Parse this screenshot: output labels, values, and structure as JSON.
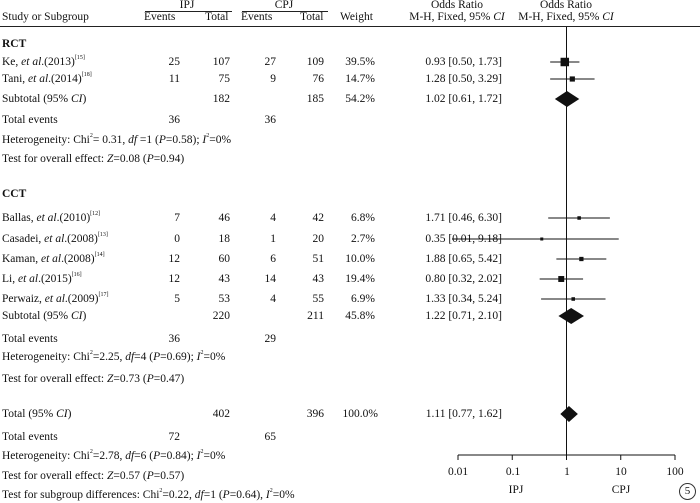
{
  "header": {
    "study": "Study or Subgroup",
    "ipj": "IPJ",
    "cpj": "CPJ",
    "events": "Events",
    "total": "Total",
    "weight": "Weight",
    "or_title": "Odds Ratio",
    "or_sub_prefix": "M-H, Fixed, 95% ",
    "ci": "CI"
  },
  "groups": [
    {
      "label": "RCT",
      "studies": [
        {
          "author": "Ke, ",
          "etal": "et al",
          "year": ".(2013)",
          "ref": "[15]",
          "ipj_e": "25",
          "ipj_t": "107",
          "cpj_e": "27",
          "cpj_t": "109",
          "weight": "39.5%",
          "or": "0.93 [0.50, 1.73]"
        },
        {
          "author": "Tani, ",
          "etal": "et al",
          "year": ".(2014)",
          "ref": "[18]",
          "ipj_e": "11",
          "ipj_t": "75",
          "cpj_e": "9",
          "cpj_t": "76",
          "weight": "14.7%",
          "or": "1.28 [0.50, 3.29]"
        }
      ],
      "subtotal": {
        "label_a": "Subtotal (95% ",
        "label_b": "CI",
        ")": ")",
        "ipj_t": "182",
        "cpj_t": "185",
        "weight": "54.2%",
        "or": "1.02 [0.61, 1.72]"
      },
      "total_events": {
        "label": "Total events",
        "ipj": "36",
        "cpj": "36"
      },
      "heterogeneity": {
        "a": "Heterogeneity: Chi",
        "sq": "2",
        "b": "= 0.31, ",
        "df": "df",
        "c": " =1 (",
        "p": "P",
        "d": "=0.58); ",
        "i": "I",
        "isq": "2",
        "e": "=0%"
      },
      "overall": {
        "a": "Test for overall effect: ",
        "z": "Z",
        "b": "=0.08 (",
        "p": "P",
        "c": "=0.94)"
      }
    },
    {
      "label": "CCT",
      "studies": [
        {
          "author": "Ballas, ",
          "etal": "et al",
          "year": ".(2010)",
          "ref": "[12]",
          "ipj_e": "7",
          "ipj_t": "46",
          "cpj_e": "4",
          "cpj_t": "42",
          "weight": "6.8%",
          "or": "1.71 [0.46, 6.30]"
        },
        {
          "author": "Casadei, ",
          "etal": "et al",
          "year": ".(2008)",
          "ref": "[13]",
          "ipj_e": "0",
          "ipj_t": "18",
          "cpj_e": "1",
          "cpj_t": "20",
          "weight": "2.7%",
          "or": "0.35 [0.01, 9.18]"
        },
        {
          "author": "Kaman, ",
          "etal": "et al",
          "year": ".(2008)",
          "ref": "[14]",
          "ipj_e": "12",
          "ipj_t": "60",
          "cpj_e": "6",
          "cpj_t": "51",
          "weight": "10.0%",
          "or": "1.88 [0.65, 5.42]"
        },
        {
          "author": "Li, ",
          "etal": "et al",
          "year": ".(2015)",
          "ref": "[16]",
          "ipj_e": "12",
          "ipj_t": "43",
          "cpj_e": "14",
          "cpj_t": "43",
          "weight": "19.4%",
          "or": "0.80 [0.32, 2.02]"
        },
        {
          "author": "Perwaiz, ",
          "etal": "et al",
          "year": ".(2009)",
          "ref": "[17]",
          "ipj_e": "5",
          "ipj_t": "53",
          "cpj_e": "4",
          "cpj_t": "55",
          "weight": "6.9%",
          "or": "1.33 [0.34, 5.24]"
        }
      ],
      "subtotal": {
        "label_a": "Subtotal (95% ",
        "label_b": "CI",
        ")": ")",
        "ipj_t": "220",
        "cpj_t": "211",
        "weight": "45.8%",
        "or": "1.22 [0.71, 2.10]"
      },
      "total_events": {
        "label": "Total events",
        "ipj": "36",
        "cpj": "29"
      },
      "heterogeneity": {
        "a": "Heterogeneity: Chi",
        "sq": "2",
        "b": "=2.25, ",
        "df": "df",
        "c": "=4 (",
        "p": "P",
        "d": "=0.69); ",
        "i": "I",
        "isq": "2",
        "e": "=0%"
      },
      "overall": {
        "a": "Test for overall effect: ",
        "z": "Z",
        "b": "=0.73 (",
        "p": "P",
        "c": "=0.47)"
      }
    }
  ],
  "total": {
    "label_a": "Total (95% ",
    "label_b": "CI",
    ")": ")",
    "ipj_t": "402",
    "cpj_t": "396",
    "weight": "100.0%",
    "or": "1.11 [0.77, 1.62]",
    "events_label": "Total events",
    "ipj_e": "72",
    "cpj_e": "65",
    "heterogeneity": {
      "a": "Heterogeneity: Chi",
      "sq": "2",
      "b": "=2.78, ",
      "df": "df",
      "c": "=6 (",
      "p": "P",
      "d": "=0.84); ",
      "i": "I",
      "isq": "2",
      "e": "=0%"
    },
    "overall": {
      "a": "Test for overall effect: ",
      "z": "Z",
      "b": "=0.57 (",
      "p": "P",
      "c": "=0.57)"
    },
    "subgroup": {
      "a": "Test for subgroup differences: Chi",
      "sq": "2",
      "b": "=0.22, ",
      "df": "df",
      "c": "=1 (",
      "p": "P",
      "d": "=0.64), ",
      "i": "I",
      "isq": "2",
      "e": "=0%"
    }
  },
  "axis": {
    "ticks": [
      "0.01",
      "0.1",
      "1",
      "10",
      "100"
    ],
    "left_label": "IPJ",
    "right_label": "CPJ"
  },
  "badge": "5",
  "chart_data": {
    "type": "forest",
    "scale": "log",
    "xlim": [
      0.01,
      100
    ],
    "reference_line": 1,
    "studies": [
      {
        "name": "Ke, et al.(2013)",
        "or": 0.93,
        "lo": 0.5,
        "hi": 1.73,
        "weight": 39.5
      },
      {
        "name": "Tani, et al.(2014)",
        "or": 1.28,
        "lo": 0.5,
        "hi": 3.29,
        "weight": 14.7
      },
      {
        "name": "Ballas, et al.(2010)",
        "or": 1.71,
        "lo": 0.46,
        "hi": 6.3,
        "weight": 6.8
      },
      {
        "name": "Casadei, et al.(2008)",
        "or": 0.35,
        "lo": 0.01,
        "hi": 9.18,
        "weight": 2.7
      },
      {
        "name": "Kaman, et al.(2008)",
        "or": 1.88,
        "lo": 0.65,
        "hi": 5.42,
        "weight": 10.0
      },
      {
        "name": "Li, et al.(2015)",
        "or": 0.8,
        "lo": 0.32,
        "hi": 2.02,
        "weight": 19.4
      },
      {
        "name": "Perwaiz, et al.(2009)",
        "or": 1.33,
        "lo": 0.34,
        "hi": 5.24,
        "weight": 6.9
      }
    ],
    "summaries": [
      {
        "name": "Subtotal RCT",
        "or": 1.02,
        "lo": 0.61,
        "hi": 1.72
      },
      {
        "name": "Subtotal CCT",
        "or": 1.22,
        "lo": 0.71,
        "hi": 2.1
      },
      {
        "name": "Total",
        "or": 1.11,
        "lo": 0.77,
        "hi": 1.62
      }
    ]
  }
}
